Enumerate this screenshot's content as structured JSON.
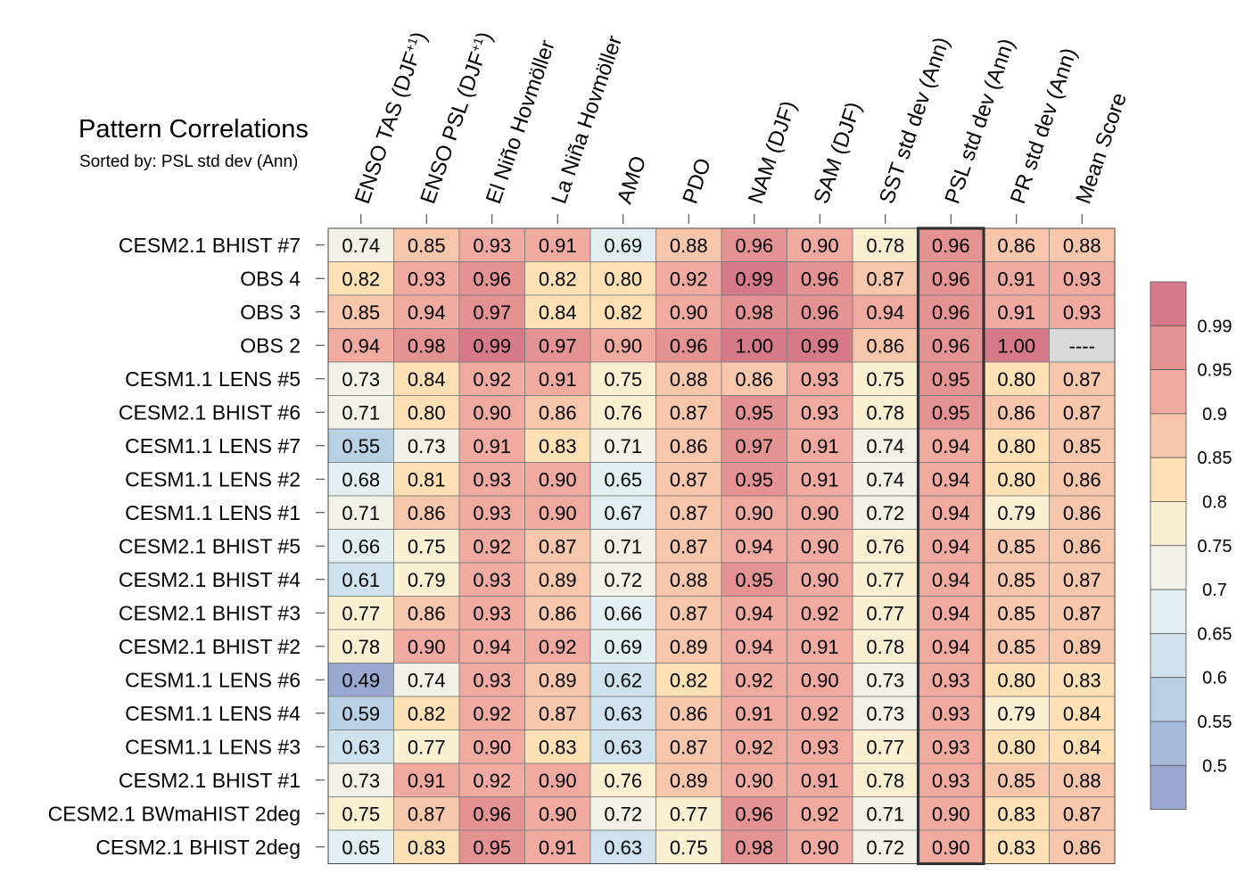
{
  "chart_data": {
    "type": "heatmap",
    "title": "Pattern Correlations",
    "subtitle": "Sorted by: PSL std dev (Ann)",
    "columns": [
      "ENSO TAS (DJF+1)",
      "ENSO PSL (DJF+1)",
      "El Niño Hovmöller",
      "La Niña Hovmöller",
      "AMO",
      "PDO",
      "NAM (DJF)",
      "SAM (DJF)",
      "SST std dev (Ann)",
      "PSL std dev (Ann)",
      "PR std dev (Ann)",
      "Mean Score"
    ],
    "sorted_by_column": "PSL std dev (Ann)",
    "rows": [
      {
        "name": "CESM2.1 BHIST #7",
        "values": [
          "0.74",
          "0.85",
          "0.93",
          "0.91",
          "0.69",
          "0.88",
          "0.96",
          "0.90",
          "0.78",
          "0.96",
          "0.86",
          "0.88"
        ]
      },
      {
        "name": "OBS 4",
        "values": [
          "0.82",
          "0.93",
          "0.96",
          "0.82",
          "0.80",
          "0.92",
          "0.99",
          "0.96",
          "0.87",
          "0.96",
          "0.91",
          "0.93"
        ]
      },
      {
        "name": "OBS 3",
        "values": [
          "0.85",
          "0.94",
          "0.97",
          "0.84",
          "0.82",
          "0.90",
          "0.98",
          "0.96",
          "0.94",
          "0.96",
          "0.91",
          "0.93"
        ]
      },
      {
        "name": "OBS 2",
        "values": [
          "0.94",
          "0.98",
          "0.99",
          "0.97",
          "0.90",
          "0.96",
          "1.00",
          "0.99",
          "0.86",
          "0.96",
          "1.00",
          "----"
        ]
      },
      {
        "name": "CESM1.1 LENS #5",
        "values": [
          "0.73",
          "0.84",
          "0.92",
          "0.91",
          "0.75",
          "0.88",
          "0.86",
          "0.93",
          "0.75",
          "0.95",
          "0.80",
          "0.87"
        ]
      },
      {
        "name": "CESM2.1 BHIST #6",
        "values": [
          "0.71",
          "0.80",
          "0.90",
          "0.86",
          "0.76",
          "0.87",
          "0.95",
          "0.93",
          "0.78",
          "0.95",
          "0.86",
          "0.87"
        ]
      },
      {
        "name": "CESM1.1 LENS #7",
        "values": [
          "0.55",
          "0.73",
          "0.91",
          "0.83",
          "0.71",
          "0.86",
          "0.97",
          "0.91",
          "0.74",
          "0.94",
          "0.80",
          "0.85"
        ]
      },
      {
        "name": "CESM1.1 LENS #2",
        "values": [
          "0.68",
          "0.81",
          "0.93",
          "0.90",
          "0.65",
          "0.87",
          "0.95",
          "0.91",
          "0.74",
          "0.94",
          "0.80",
          "0.86"
        ]
      },
      {
        "name": "CESM1.1 LENS #1",
        "values": [
          "0.71",
          "0.86",
          "0.93",
          "0.90",
          "0.67",
          "0.87",
          "0.90",
          "0.90",
          "0.72",
          "0.94",
          "0.79",
          "0.86"
        ]
      },
      {
        "name": "CESM2.1 BHIST #5",
        "values": [
          "0.66",
          "0.75",
          "0.92",
          "0.87",
          "0.71",
          "0.87",
          "0.94",
          "0.90",
          "0.76",
          "0.94",
          "0.85",
          "0.86"
        ]
      },
      {
        "name": "CESM2.1 BHIST #4",
        "values": [
          "0.61",
          "0.79",
          "0.93",
          "0.89",
          "0.72",
          "0.88",
          "0.95",
          "0.90",
          "0.77",
          "0.94",
          "0.85",
          "0.87"
        ]
      },
      {
        "name": "CESM2.1 BHIST #3",
        "values": [
          "0.77",
          "0.86",
          "0.93",
          "0.86",
          "0.66",
          "0.87",
          "0.94",
          "0.92",
          "0.77",
          "0.94",
          "0.85",
          "0.87"
        ]
      },
      {
        "name": "CESM2.1 BHIST #2",
        "values": [
          "0.78",
          "0.90",
          "0.94",
          "0.92",
          "0.69",
          "0.89",
          "0.94",
          "0.91",
          "0.78",
          "0.94",
          "0.85",
          "0.89"
        ]
      },
      {
        "name": "CESM1.1 LENS #6",
        "values": [
          "0.49",
          "0.74",
          "0.93",
          "0.89",
          "0.62",
          "0.82",
          "0.92",
          "0.90",
          "0.73",
          "0.93",
          "0.80",
          "0.83"
        ]
      },
      {
        "name": "CESM1.1 LENS #4",
        "values": [
          "0.59",
          "0.82",
          "0.92",
          "0.87",
          "0.63",
          "0.86",
          "0.91",
          "0.92",
          "0.73",
          "0.93",
          "0.79",
          "0.84"
        ]
      },
      {
        "name": "CESM1.1 LENS #3",
        "values": [
          "0.63",
          "0.77",
          "0.90",
          "0.83",
          "0.63",
          "0.87",
          "0.92",
          "0.93",
          "0.77",
          "0.93",
          "0.80",
          "0.84"
        ]
      },
      {
        "name": "CESM2.1 BHIST #1",
        "values": [
          "0.73",
          "0.91",
          "0.92",
          "0.90",
          "0.76",
          "0.89",
          "0.90",
          "0.91",
          "0.78",
          "0.93",
          "0.85",
          "0.88"
        ]
      },
      {
        "name": "CESM2.1 BWmaHIST 2deg",
        "values": [
          "0.75",
          "0.87",
          "0.96",
          "0.90",
          "0.72",
          "0.77",
          "0.96",
          "0.92",
          "0.71",
          "0.90",
          "0.83",
          "0.87"
        ]
      },
      {
        "name": "CESM2.1 BHIST 2deg",
        "values": [
          "0.65",
          "0.83",
          "0.95",
          "0.91",
          "0.63",
          "0.75",
          "0.98",
          "0.90",
          "0.72",
          "0.90",
          "0.83",
          "0.86"
        ]
      }
    ],
    "colorbar": {
      "labels": [
        "0.99",
        "0.95",
        "0.9",
        "0.85",
        "0.8",
        "0.75",
        "0.7",
        "0.65",
        "0.6",
        "0.55",
        "0.5"
      ],
      "bins_top_to_bottom": [
        "#d67a8a",
        "#e49292",
        "#f0aaa0",
        "#f8c6aa",
        "#fde0b4",
        "#fcf0d2",
        "#f2f2e8",
        "#e2eef2",
        "#cde2ec",
        "#b8d0e4",
        "#a6bcdc",
        "#98a8d0"
      ],
      "missing_color": "#d9d9d9"
    }
  }
}
